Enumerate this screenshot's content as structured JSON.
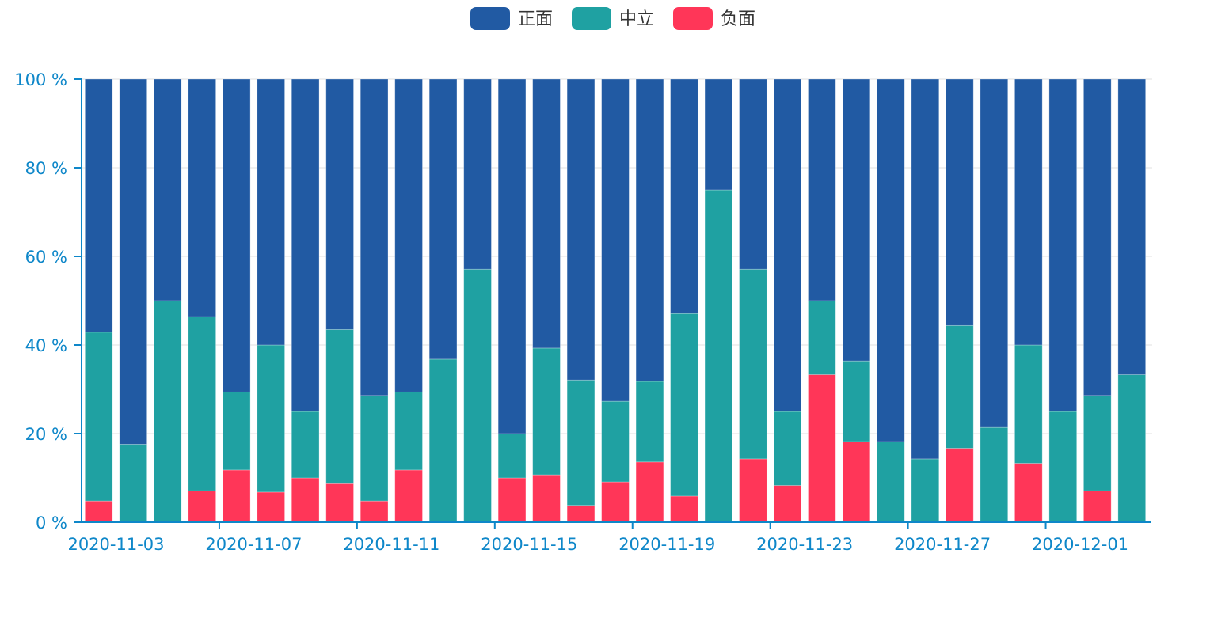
{
  "chart_data": {
    "type": "bar",
    "stacked": true,
    "normalized": true,
    "title": "",
    "xlabel": "",
    "ylabel": "",
    "ylim": [
      0,
      100
    ],
    "y_ticks": [
      "0 %",
      "20 %",
      "40 %",
      "60 %",
      "80 %",
      "100 %"
    ],
    "grid": "horizontal",
    "legend_position": "top-center",
    "x_tick_labels": [
      "2020-11-03",
      "2020-11-07",
      "2020-11-11",
      "2020-11-15",
      "2020-11-19",
      "2020-11-23",
      "2020-11-27",
      "2020-12-01"
    ],
    "categories": [
      "2020-11-03",
      "2020-11-04",
      "2020-11-05",
      "2020-11-06",
      "2020-11-07",
      "2020-11-08",
      "2020-11-09",
      "2020-11-10",
      "2020-11-11",
      "2020-11-12",
      "2020-11-13",
      "2020-11-14",
      "2020-11-15",
      "2020-11-16",
      "2020-11-17",
      "2020-11-18",
      "2020-11-19",
      "2020-11-20",
      "2020-11-21",
      "2020-11-22",
      "2020-11-23",
      "2020-11-24",
      "2020-11-25",
      "2020-11-26",
      "2020-11-27",
      "2020-11-28",
      "2020-11-29",
      "2020-11-30",
      "2020-12-01",
      "2020-12-02",
      "2020-12-03"
    ],
    "series": [
      {
        "name": "负面",
        "color": "#ff3658",
        "values": [
          4.8,
          0,
          0,
          7.1,
          11.8,
          6.8,
          10,
          8.7,
          4.8,
          11.8,
          0,
          0,
          10,
          10.7,
          3.8,
          9.1,
          13.6,
          5.9,
          0,
          14.3,
          8.3,
          33.3,
          18.2,
          0,
          0,
          16.7,
          0,
          13.3,
          0,
          7.1,
          0
        ]
      },
      {
        "name": "中立",
        "color": "#1fa1a2",
        "values": [
          38.1,
          17.6,
          50,
          39.3,
          17.6,
          33.2,
          15,
          34.8,
          23.8,
          17.6,
          36.8,
          57.1,
          10,
          28.6,
          28.3,
          18.2,
          18.2,
          41.2,
          75,
          42.8,
          16.7,
          16.7,
          18.2,
          18.2,
          14.3,
          27.7,
          21.4,
          26.7,
          25,
          21.5,
          33.3
        ]
      },
      {
        "name": "正面",
        "color": "#215aa3",
        "values": [
          57.1,
          82.4,
          50,
          53.6,
          70.6,
          60,
          75,
          56.5,
          71.4,
          70.6,
          63.2,
          42.9,
          80,
          60.7,
          67.9,
          72.7,
          68.2,
          52.9,
          25,
          42.9,
          75,
          50,
          63.6,
          81.8,
          85.7,
          55.6,
          78.6,
          60,
          75,
          71.4,
          66.7
        ]
      }
    ],
    "legend": [
      {
        "name": "正面",
        "color": "#215aa3"
      },
      {
        "name": "中立",
        "color": "#1fa1a2"
      },
      {
        "name": "负面",
        "color": "#ff3658"
      }
    ],
    "axis_color": "#0e87c9"
  }
}
